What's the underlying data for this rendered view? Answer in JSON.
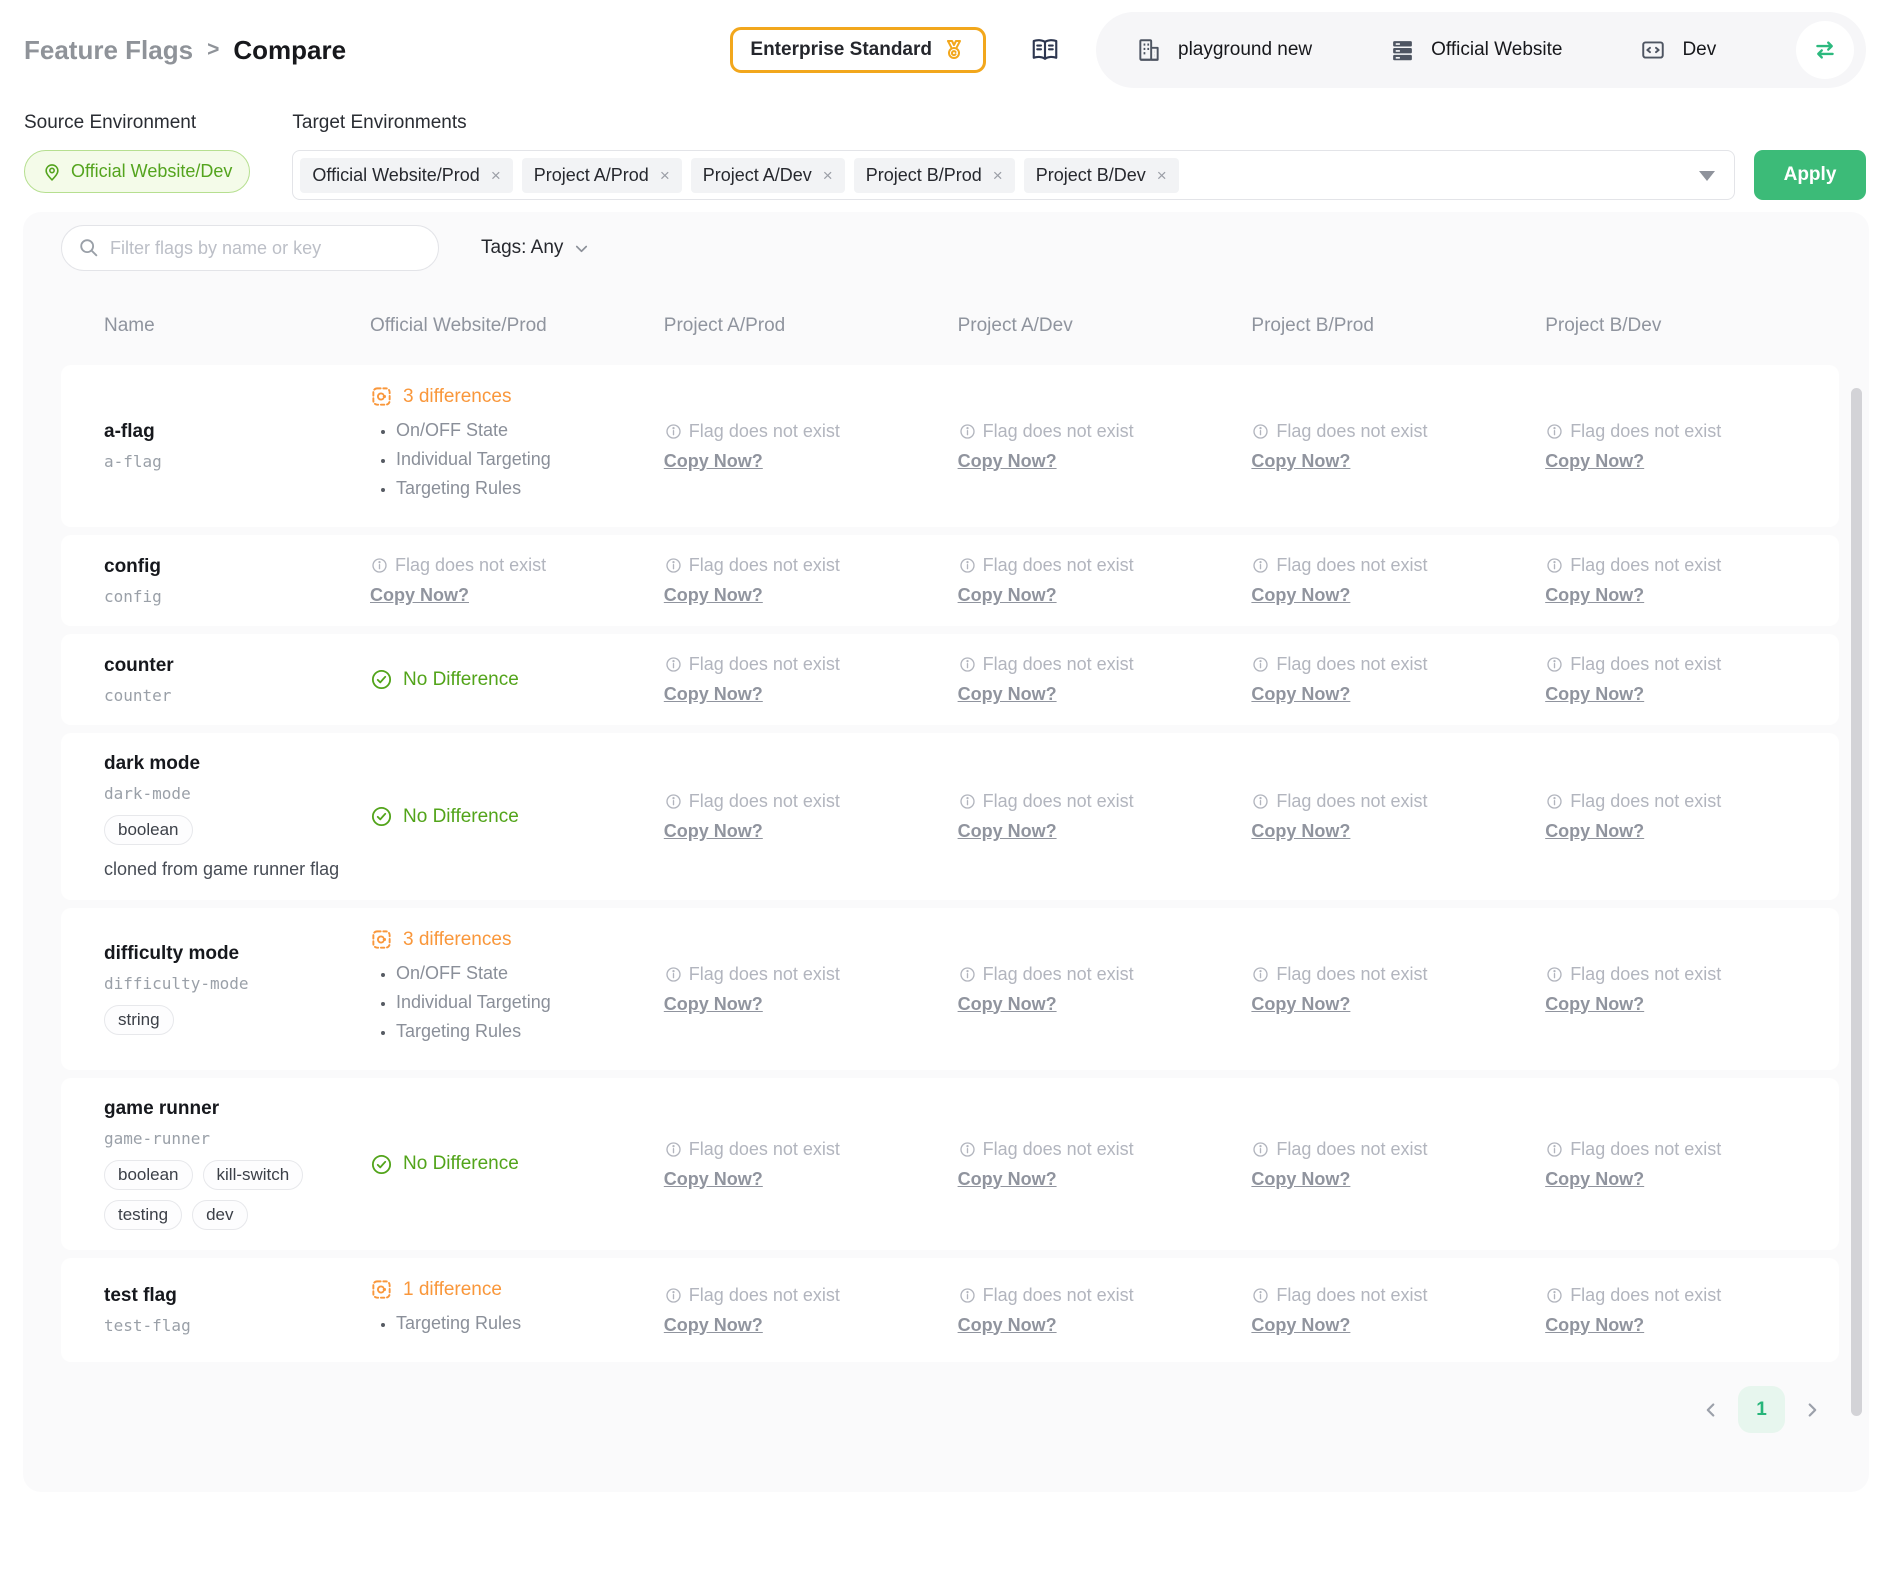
{
  "header": {
    "breadcrumb": {
      "parent": "Feature Flags",
      "separator": ">",
      "current": "Compare"
    },
    "plan_badge": "Enterprise Standard",
    "nav": {
      "organization": "playground new",
      "project": "Official Website",
      "environment": "Dev"
    }
  },
  "env_bar": {
    "source_label": "Source Environment",
    "target_label": "Target Environments",
    "source_value": "Official Website/Dev",
    "targets": [
      "Official Website/Prod",
      "Project A/Prod",
      "Project A/Dev",
      "Project B/Prod",
      "Project B/Dev"
    ],
    "apply_label": "Apply"
  },
  "toolbar": {
    "filter_placeholder": "Filter flags by name or key",
    "tags_filter_label": "Tags: Any"
  },
  "table": {
    "columns": [
      "Name",
      "Official Website/Prod",
      "Project A/Prod",
      "Project A/Dev",
      "Project B/Prod",
      "Project B/Dev"
    ],
    "strings": {
      "missing": "Flag does not exist",
      "copy_now": "Copy Now?",
      "no_difference": "No Difference"
    },
    "rows": [
      {
        "name": "a-flag",
        "key": "a-flag",
        "tags": [],
        "description": "",
        "cells": [
          {
            "type": "diff",
            "label": "3 differences",
            "items": [
              "On/OFF State",
              "Individual Targeting",
              "Targeting Rules"
            ]
          },
          {
            "type": "missing"
          },
          {
            "type": "missing"
          },
          {
            "type": "missing"
          },
          {
            "type": "missing"
          }
        ]
      },
      {
        "name": "config",
        "key": "config",
        "tags": [],
        "description": "",
        "cells": [
          {
            "type": "missing"
          },
          {
            "type": "missing"
          },
          {
            "type": "missing"
          },
          {
            "type": "missing"
          },
          {
            "type": "missing"
          }
        ]
      },
      {
        "name": "counter",
        "key": "counter",
        "tags": [],
        "description": "",
        "cells": [
          {
            "type": "same"
          },
          {
            "type": "missing"
          },
          {
            "type": "missing"
          },
          {
            "type": "missing"
          },
          {
            "type": "missing"
          }
        ]
      },
      {
        "name": "dark mode",
        "key": "dark-mode",
        "tags": [
          "boolean"
        ],
        "description": "cloned from game runner flag",
        "cells": [
          {
            "type": "same"
          },
          {
            "type": "missing"
          },
          {
            "type": "missing"
          },
          {
            "type": "missing"
          },
          {
            "type": "missing"
          }
        ]
      },
      {
        "name": "difficulty mode",
        "key": "difficulty-mode",
        "tags": [
          "string"
        ],
        "description": "",
        "cells": [
          {
            "type": "diff",
            "label": "3 differences",
            "items": [
              "On/OFF State",
              "Individual Targeting",
              "Targeting Rules"
            ]
          },
          {
            "type": "missing"
          },
          {
            "type": "missing"
          },
          {
            "type": "missing"
          },
          {
            "type": "missing"
          }
        ]
      },
      {
        "name": "game runner",
        "key": "game-runner",
        "tags": [
          "boolean",
          "kill-switch",
          "testing",
          "dev"
        ],
        "description": "",
        "cells": [
          {
            "type": "same"
          },
          {
            "type": "missing"
          },
          {
            "type": "missing"
          },
          {
            "type": "missing"
          },
          {
            "type": "missing"
          }
        ]
      },
      {
        "name": "test flag",
        "key": "test-flag",
        "tags": [],
        "description": "",
        "cells": [
          {
            "type": "diff",
            "label": "1 difference",
            "items": [
              "Targeting Rules"
            ]
          },
          {
            "type": "missing"
          },
          {
            "type": "missing"
          },
          {
            "type": "missing"
          },
          {
            "type": "missing"
          }
        ]
      }
    ]
  },
  "pagination": {
    "page": "1"
  },
  "colors": {
    "accent_green": "#3cbb78",
    "success_green": "#52a41a",
    "warning_orange": "#f9973b",
    "badge_gold": "#f2a71c",
    "muted_gray": "#b2b5be"
  }
}
